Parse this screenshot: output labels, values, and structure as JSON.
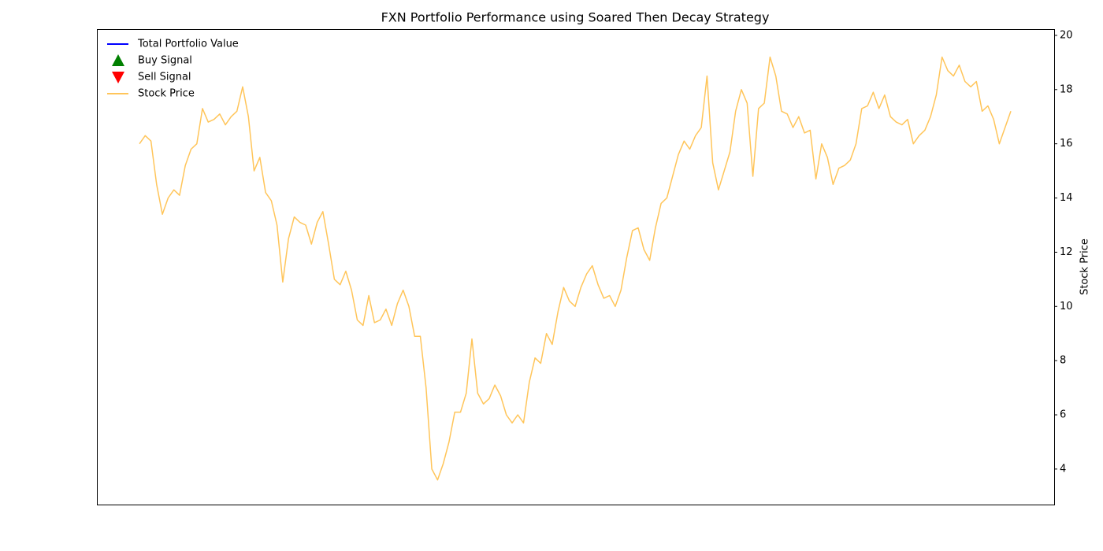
{
  "chart_data": {
    "type": "line",
    "title": "FXN Portfolio Performance using Soared Then Decay Strategy",
    "y2label": "Stock Price",
    "y2lim": [
      2.69,
      20.23
    ],
    "y2ticks": [
      4,
      6,
      8,
      10,
      12,
      14,
      16,
      18,
      20
    ],
    "legend": "upper left",
    "series": [
      {
        "name": "Total Portfolio Value",
        "color": "#0000ff",
        "marker": "line"
      },
      {
        "name": "Buy Signal",
        "color": "#008000",
        "marker": "triangle-up"
      },
      {
        "name": "Sell Signal",
        "color": "#ff0000",
        "marker": "triangle-down"
      },
      {
        "name": "Stock Price",
        "color": "#ffc55a",
        "marker": "line",
        "axis": "y2",
        "values": [
          16.0,
          16.3,
          16.1,
          14.5,
          13.4,
          14.0,
          14.3,
          14.1,
          15.2,
          15.8,
          16.0,
          17.3,
          16.8,
          16.9,
          17.1,
          16.7,
          17.0,
          17.2,
          18.1,
          17.0,
          15.0,
          15.5,
          14.2,
          13.9,
          13.0,
          10.9,
          12.5,
          13.3,
          13.1,
          13.0,
          12.3,
          13.1,
          13.5,
          12.3,
          11.0,
          10.8,
          11.3,
          10.6,
          9.5,
          9.3,
          10.4,
          9.4,
          9.5,
          9.9,
          9.3,
          10.1,
          10.6,
          10.0,
          8.9,
          8.9,
          7.0,
          4.0,
          3.6,
          4.2,
          5.0,
          6.1,
          6.1,
          6.8,
          8.8,
          6.8,
          6.4,
          6.6,
          7.1,
          6.7,
          6.0,
          5.7,
          6.0,
          5.7,
          7.2,
          8.1,
          7.9,
          9.0,
          8.6,
          9.8,
          10.7,
          10.2,
          10.0,
          10.7,
          11.2,
          11.5,
          10.8,
          10.3,
          10.4,
          10.0,
          10.6,
          11.8,
          12.8,
          12.9,
          12.1,
          11.7,
          12.9,
          13.8,
          14.0,
          14.8,
          15.6,
          16.1,
          15.8,
          16.3,
          16.6,
          18.5,
          15.3,
          14.3,
          15.0,
          15.7,
          17.2,
          18.0,
          17.5,
          14.8,
          17.3,
          17.5,
          19.2,
          18.5,
          17.2,
          17.1,
          16.6,
          17.0,
          16.4,
          16.5,
          14.7,
          16.0,
          15.5,
          14.5,
          15.1,
          15.2,
          15.4,
          16.0,
          17.3,
          17.4,
          17.9,
          17.3,
          17.8,
          17.0,
          16.8,
          16.7,
          16.9,
          16.0,
          16.3,
          16.5,
          17.0,
          17.8,
          19.2,
          18.7,
          18.5,
          18.9,
          18.3,
          18.1,
          18.3,
          17.2,
          17.4,
          16.9,
          16.0,
          16.6,
          17.2
        ]
      }
    ]
  }
}
